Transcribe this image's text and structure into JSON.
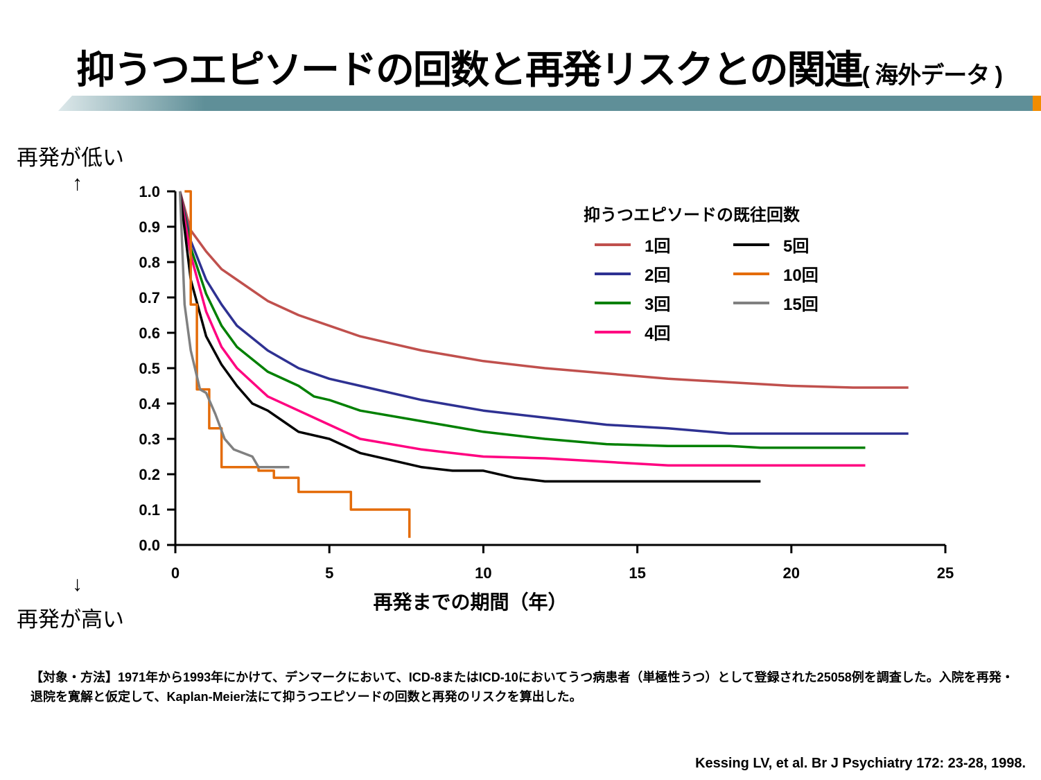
{
  "slide": {
    "title_main": "抑うつエピソードの回数と再発リスクとの関連",
    "title_sub": "( 海外データ )",
    "label_top": "再発が低い",
    "label_bottom": "再発が高い",
    "arrow_up": "↑",
    "arrow_down": "↓",
    "method_text": "【対象・方法】1971年から1993年にかけて、デンマークにおいて、ICD-8またはICD-10においてうつ病患者（単極性うつ）として登録された25058例を調査した。入院を再発・退院を寛解と仮定して、Kaplan-Meier法にて抑うつエピソードの回数と再発のリスクを算出した。",
    "citation": "Kessing LV, et al. Br J Psychiatry 172: 23-28, 1998.",
    "colors": {
      "bar": "#5f8f98",
      "bar_light": "#c9d9dc",
      "accent": "#f08c00"
    }
  },
  "chart_data": {
    "type": "line",
    "xlabel": "再発までの期間（年）",
    "ylabel": "",
    "xlim": [
      0,
      25
    ],
    "ylim": [
      0.0,
      1.0
    ],
    "xticks": [
      "0",
      "5",
      "10",
      "15",
      "20",
      "25"
    ],
    "yticks": [
      "0.0",
      "0.1",
      "0.2",
      "0.3",
      "0.4",
      "0.5",
      "0.6",
      "0.7",
      "0.8",
      "0.9",
      "1.0"
    ],
    "grid": false,
    "legend_title": "抑うつエピソードの既往回数",
    "legend_position": "top-right",
    "series": [
      {
        "name": "1回",
        "color": "#c0504d",
        "step": false,
        "x": [
          0.15,
          0.5,
          1,
          1.5,
          2,
          3,
          4,
          5,
          6,
          7,
          8,
          9,
          10,
          12,
          14,
          16,
          18,
          20,
          22,
          23.8
        ],
        "y": [
          1.0,
          0.89,
          0.83,
          0.78,
          0.75,
          0.69,
          0.65,
          0.62,
          0.59,
          0.57,
          0.55,
          0.535,
          0.52,
          0.5,
          0.485,
          0.47,
          0.46,
          0.45,
          0.445,
          0.445
        ]
      },
      {
        "name": "2回",
        "color": "#2e3192",
        "step": false,
        "x": [
          0.15,
          0.5,
          1,
          1.5,
          2,
          3,
          4,
          5,
          6,
          8,
          10,
          12,
          14,
          16,
          18,
          20,
          22,
          23.8
        ],
        "y": [
          1.0,
          0.86,
          0.75,
          0.68,
          0.62,
          0.55,
          0.5,
          0.47,
          0.45,
          0.41,
          0.38,
          0.36,
          0.34,
          0.33,
          0.315,
          0.315,
          0.315,
          0.315
        ]
      },
      {
        "name": "3回",
        "color": "#008000",
        "step": false,
        "x": [
          0.15,
          0.5,
          1,
          1.5,
          2,
          3,
          4,
          4.5,
          5,
          6,
          8,
          10,
          12,
          14,
          16,
          18,
          19,
          20,
          22.4
        ],
        "y": [
          1.0,
          0.84,
          0.71,
          0.62,
          0.56,
          0.49,
          0.45,
          0.42,
          0.41,
          0.38,
          0.35,
          0.32,
          0.3,
          0.285,
          0.28,
          0.28,
          0.275,
          0.275,
          0.275
        ]
      },
      {
        "name": "4回",
        "color": "#ff0080",
        "step": false,
        "x": [
          0.15,
          0.5,
          1,
          1.5,
          2,
          3,
          4,
          5,
          6,
          8,
          10,
          12,
          14,
          16,
          18,
          20,
          22.4
        ],
        "y": [
          1.0,
          0.82,
          0.66,
          0.56,
          0.5,
          0.42,
          0.38,
          0.34,
          0.3,
          0.27,
          0.25,
          0.245,
          0.235,
          0.225,
          0.225,
          0.225,
          0.225
        ]
      },
      {
        "name": "5回",
        "color": "#000000",
        "step": false,
        "x": [
          0.15,
          0.5,
          1,
          1.5,
          2,
          2.5,
          3,
          3.5,
          4,
          5,
          6,
          7,
          8,
          9,
          10,
          11,
          12,
          14,
          16,
          19
        ],
        "y": [
          1.0,
          0.75,
          0.59,
          0.51,
          0.45,
          0.4,
          0.38,
          0.35,
          0.32,
          0.3,
          0.26,
          0.24,
          0.22,
          0.21,
          0.21,
          0.19,
          0.18,
          0.18,
          0.18,
          0.18
        ]
      },
      {
        "name": "10回",
        "color": "#e46c0a",
        "step": true,
        "x": [
          0.3,
          0.5,
          0.7,
          1.1,
          1.5,
          2.7,
          3.2,
          4.0,
          5.7,
          7.6
        ],
        "y": [
          1.0,
          0.68,
          0.44,
          0.33,
          0.22,
          0.21,
          0.19,
          0.15,
          0.1,
          0.02
        ]
      },
      {
        "name": "15回",
        "color": "#808080",
        "step": false,
        "x": [
          0.15,
          0.3,
          0.5,
          0.8,
          1.0,
          1.3,
          1.6,
          1.9,
          2.5,
          2.7,
          3.7
        ],
        "y": [
          1.0,
          0.68,
          0.55,
          0.44,
          0.43,
          0.37,
          0.3,
          0.27,
          0.25,
          0.22,
          0.22
        ]
      }
    ]
  }
}
